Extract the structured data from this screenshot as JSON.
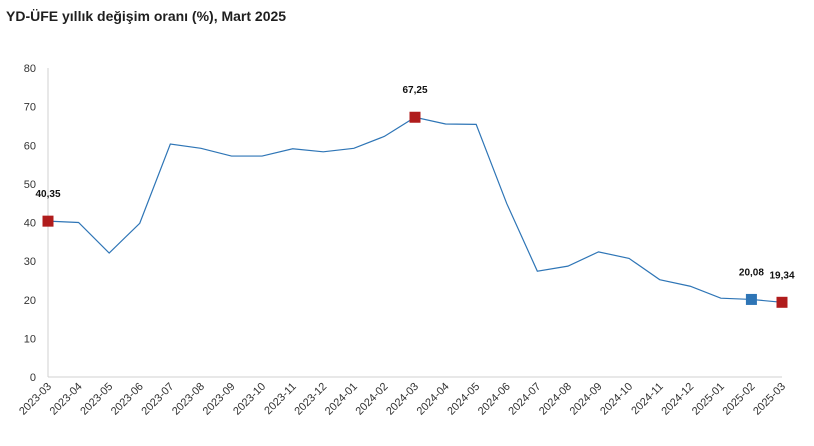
{
  "chart_data": {
    "type": "line",
    "title": "YD-ÜFE yıllık değişim oranı (%), Mart 2025",
    "xlabel": "",
    "ylabel": "",
    "ylim": [
      0,
      80
    ],
    "yticks": [
      0,
      10,
      20,
      30,
      40,
      50,
      60,
      70,
      80
    ],
    "grid": false,
    "categories": [
      "2023-03",
      "2023-04",
      "2023-05",
      "2023-06",
      "2023-07",
      "2023-08",
      "2023-09",
      "2023-10",
      "2023-11",
      "2023-12",
      "2024-01",
      "2024-02",
      "2024-03",
      "2024-04",
      "2024-05",
      "2024-06",
      "2024-07",
      "2024-08",
      "2024-09",
      "2024-10",
      "2024-11",
      "2024-12",
      "2025-01",
      "2025-02",
      "2025-03"
    ],
    "series": [
      {
        "values": [
          40.35,
          40.0,
          32.1,
          39.8,
          60.3,
          59.2,
          57.2,
          57.2,
          59.1,
          58.3,
          59.2,
          62.3,
          67.25,
          65.5,
          65.4,
          44.9,
          27.4,
          28.7,
          32.4,
          30.7,
          25.2,
          23.5,
          20.4,
          20.08,
          19.34
        ],
        "color": "#2e75b6"
      }
    ],
    "markers": [
      {
        "index": 0,
        "label": "40,35",
        "color": "#b01c1c"
      },
      {
        "index": 12,
        "label": "67,25",
        "color": "#b01c1c"
      },
      {
        "index": 23,
        "label": "20,08",
        "color": "#2e75b6"
      },
      {
        "index": 24,
        "label": "19,34",
        "color": "#b01c1c"
      }
    ]
  }
}
